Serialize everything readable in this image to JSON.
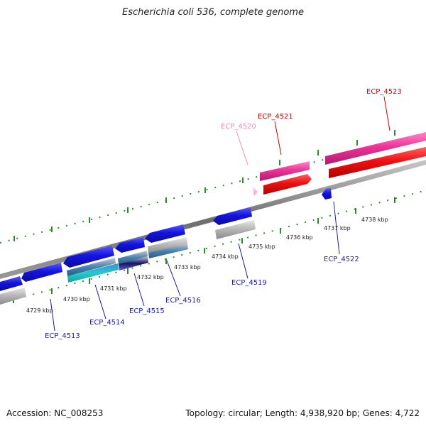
{
  "title": "Escherichia coli 536, complete genome",
  "footer": {
    "accession": "Accession: NC_008253",
    "topology": "Topology: circular; Length: 4,938,920 bp; Genes: 4,722"
  },
  "colors": {
    "backbone": "#808080",
    "tick": "#2e8b2e",
    "label_blue": "#1a1aa6",
    "label_red": "#cc0000",
    "label_pink": "#f08cb4",
    "gene_blue": "#1414e0",
    "gene_red": "#ee1111",
    "gene_magenta": "#ee3399",
    "gene_pink": "#ff99cc",
    "gene_grey": "#b4b4b4",
    "gene_cyan": "#22cccc",
    "gene_steel": "#4682b4",
    "gene_navy": "#141464",
    "gene_purple": "#6a5acd"
  },
  "scale": {
    "unit": "kbp",
    "labels": [
      "4729 kbp",
      "4730 kbp",
      "4731 kbp",
      "4732 kbp",
      "4733 kbp",
      "4734 kbp",
      "4735 kbp",
      "4736 kbp",
      "4737 kbp",
      "4738 kbp"
    ]
  },
  "gene_labels": [
    {
      "name": "ECP_4513",
      "color": "label_blue"
    },
    {
      "name": "ECP_4514",
      "color": "label_blue"
    },
    {
      "name": "ECP_4515",
      "color": "label_blue"
    },
    {
      "name": "ECP_4516",
      "color": "label_blue"
    },
    {
      "name": "ECP_4519",
      "color": "label_blue"
    },
    {
      "name": "ECP_4520",
      "color": "label_pink"
    },
    {
      "name": "ECP_4521",
      "color": "label_red"
    },
    {
      "name": "ECP_4522",
      "color": "label_blue"
    },
    {
      "name": "ECP_4523",
      "color": "label_red"
    }
  ]
}
